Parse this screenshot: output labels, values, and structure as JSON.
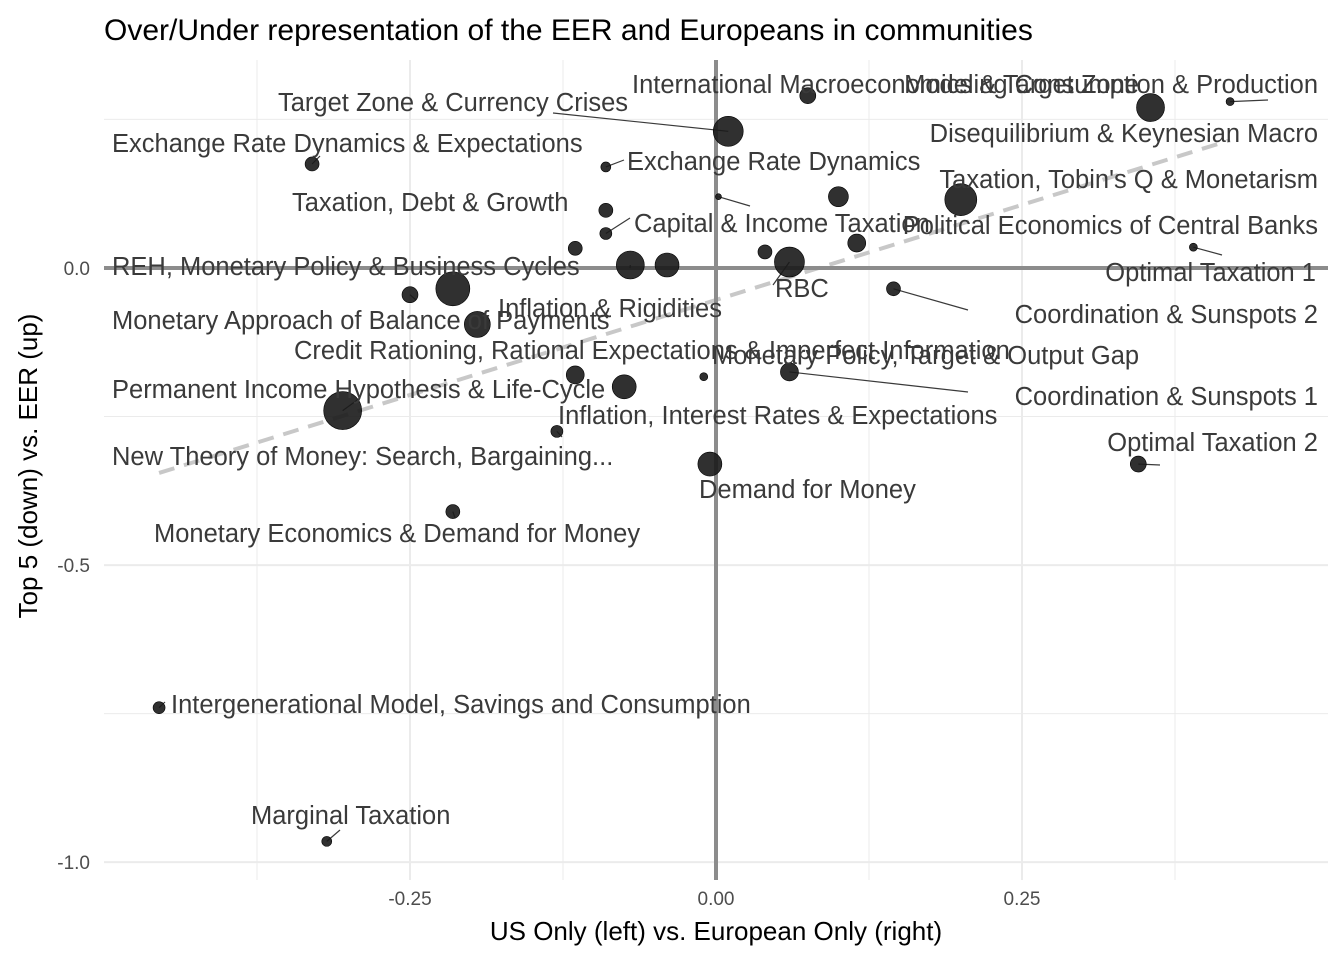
{
  "chart_data": {
    "type": "scatter",
    "title": "Over/Under representation of the EER and Europeans in communities",
    "xlabel": "US Only (left) vs. European Only (right)",
    "ylabel": "Top 5 (down) vs. EER (up)",
    "xlim": [
      -0.5,
      0.5
    ],
    "ylim": [
      -1.03,
      0.35
    ],
    "xticks": [
      -0.25,
      0,
      0.25
    ],
    "xtick_labels": [
      "-0.25",
      "0.00",
      "0.25"
    ],
    "yticks": [
      -1.0,
      -0.5,
      0.0
    ],
    "ytick_labels": [
      "-1.0",
      "-0.5",
      "0.0"
    ],
    "grid": true,
    "reference_lines": {
      "x": 0,
      "y": 0
    },
    "trend_line": {
      "style": "dashed",
      "color": "#c8c8c8",
      "from": [
        -0.455,
        -0.345
      ],
      "to": [
        0.42,
        0.215
      ]
    },
    "colors": {
      "point": "#1a1a1a",
      "grid": "#ebebeb",
      "axis_line": "#8c8c8c",
      "label": "#3a3a3a",
      "leader": "#3a3a3a"
    },
    "points": [
      {
        "label": "International Macroeconomics & Target Zone",
        "x": 0.075,
        "y": 0.29,
        "size": 8
      },
      {
        "label": "Modeling Consumption & Production",
        "x": 0.355,
        "y": 0.27,
        "size": 14
      },
      {
        "label": "",
        "x": 0.42,
        "y": 0.28,
        "size": 4
      },
      {
        "label": "Target Zone & Currency Crises",
        "x": 0.01,
        "y": 0.23,
        "size": 15
      },
      {
        "label": "Exchange Rate Dynamics & Expectations",
        "x": -0.33,
        "y": 0.175,
        "size": 7
      },
      {
        "label": "Exchange Rate Dynamics",
        "x": -0.09,
        "y": 0.17,
        "size": 5
      },
      {
        "label": "Disequilibrium & Keynesian Macro",
        "x": 0.1,
        "y": 0.12,
        "size": 10
      },
      {
        "label": "Taxation, Tobin's Q & Monetarism",
        "x": 0.2,
        "y": 0.115,
        "size": 16
      },
      {
        "label": "",
        "x": 0.002,
        "y": 0.12,
        "size": 3
      },
      {
        "label": "Taxation, Debt & Growth",
        "x": -0.09,
        "y": 0.097,
        "size": 7
      },
      {
        "label": "Capital & Income Taxation",
        "x": -0.09,
        "y": 0.058,
        "size": 6
      },
      {
        "label": "Political Economics of Central Banks",
        "x": 0.115,
        "y": 0.042,
        "size": 9
      },
      {
        "label": "",
        "x": 0.04,
        "y": 0.027,
        "size": 7
      },
      {
        "label": "",
        "x": -0.115,
        "y": 0.033,
        "size": 7
      },
      {
        "label": "",
        "x": 0.39,
        "y": 0.035,
        "size": 4
      },
      {
        "label": "RBC",
        "x": 0.06,
        "y": 0.01,
        "size": 15
      },
      {
        "label": "",
        "x": -0.04,
        "y": 0.005,
        "size": 12
      },
      {
        "label": "REH, Monetary Policy & Business Cycles",
        "x": -0.07,
        "y": 0.005,
        "size": 14
      },
      {
        "label": "Optimal Taxation 1",
        "x": 0.39,
        "y": 0.035,
        "size": 0
      },
      {
        "label": "Coordination & Sunspots 2",
        "x": 0.145,
        "y": -0.035,
        "size": 7
      },
      {
        "label": "",
        "x": -0.215,
        "y": -0.035,
        "size": 17
      },
      {
        "label": "Inflation & Rigidities",
        "x": -0.25,
        "y": -0.045,
        "size": 8
      },
      {
        "label": "Monetary Approach of Balance of Payments",
        "x": -0.195,
        "y": -0.095,
        "size": 13
      },
      {
        "label": "Credit Rationing, Rational Expectations & Imperfect Information",
        "x": -0.115,
        "y": -0.18,
        "size": 9
      },
      {
        "label": "Monetary Policy, Target & Output Gap",
        "x": 0.06,
        "y": -0.175,
        "size": 9
      },
      {
        "label": "Coordination & Sunspots 1",
        "x": 0.06,
        "y": -0.175,
        "size": 0
      },
      {
        "label": "",
        "x": -0.01,
        "y": -0.183,
        "size": 4
      },
      {
        "label": "Permanent Income Hypothesis & Life-Cycle",
        "x": -0.075,
        "y": -0.2,
        "size": 12
      },
      {
        "label": "",
        "x": -0.305,
        "y": -0.24,
        "size": 19
      },
      {
        "label": "Inflation, Interest Rates & Expectations",
        "x": -0.13,
        "y": -0.275,
        "size": 6
      },
      {
        "label": "New Theory of Money: Search, Bargaining...",
        "x": -0.305,
        "y": -0.24,
        "size": 0
      },
      {
        "label": "Demand for Money",
        "x": -0.005,
        "y": -0.33,
        "size": 12
      },
      {
        "label": "Optimal Taxation 2",
        "x": 0.345,
        "y": -0.33,
        "size": 8
      },
      {
        "label": "Monetary Economics & Demand for Money",
        "x": -0.215,
        "y": -0.41,
        "size": 7
      },
      {
        "label": "Intergenerational Model, Savings and Consumption",
        "x": -0.455,
        "y": -0.74,
        "size": 6
      },
      {
        "label": "Marginal Taxation",
        "x": -0.318,
        "y": -0.965,
        "size": 5
      }
    ]
  }
}
